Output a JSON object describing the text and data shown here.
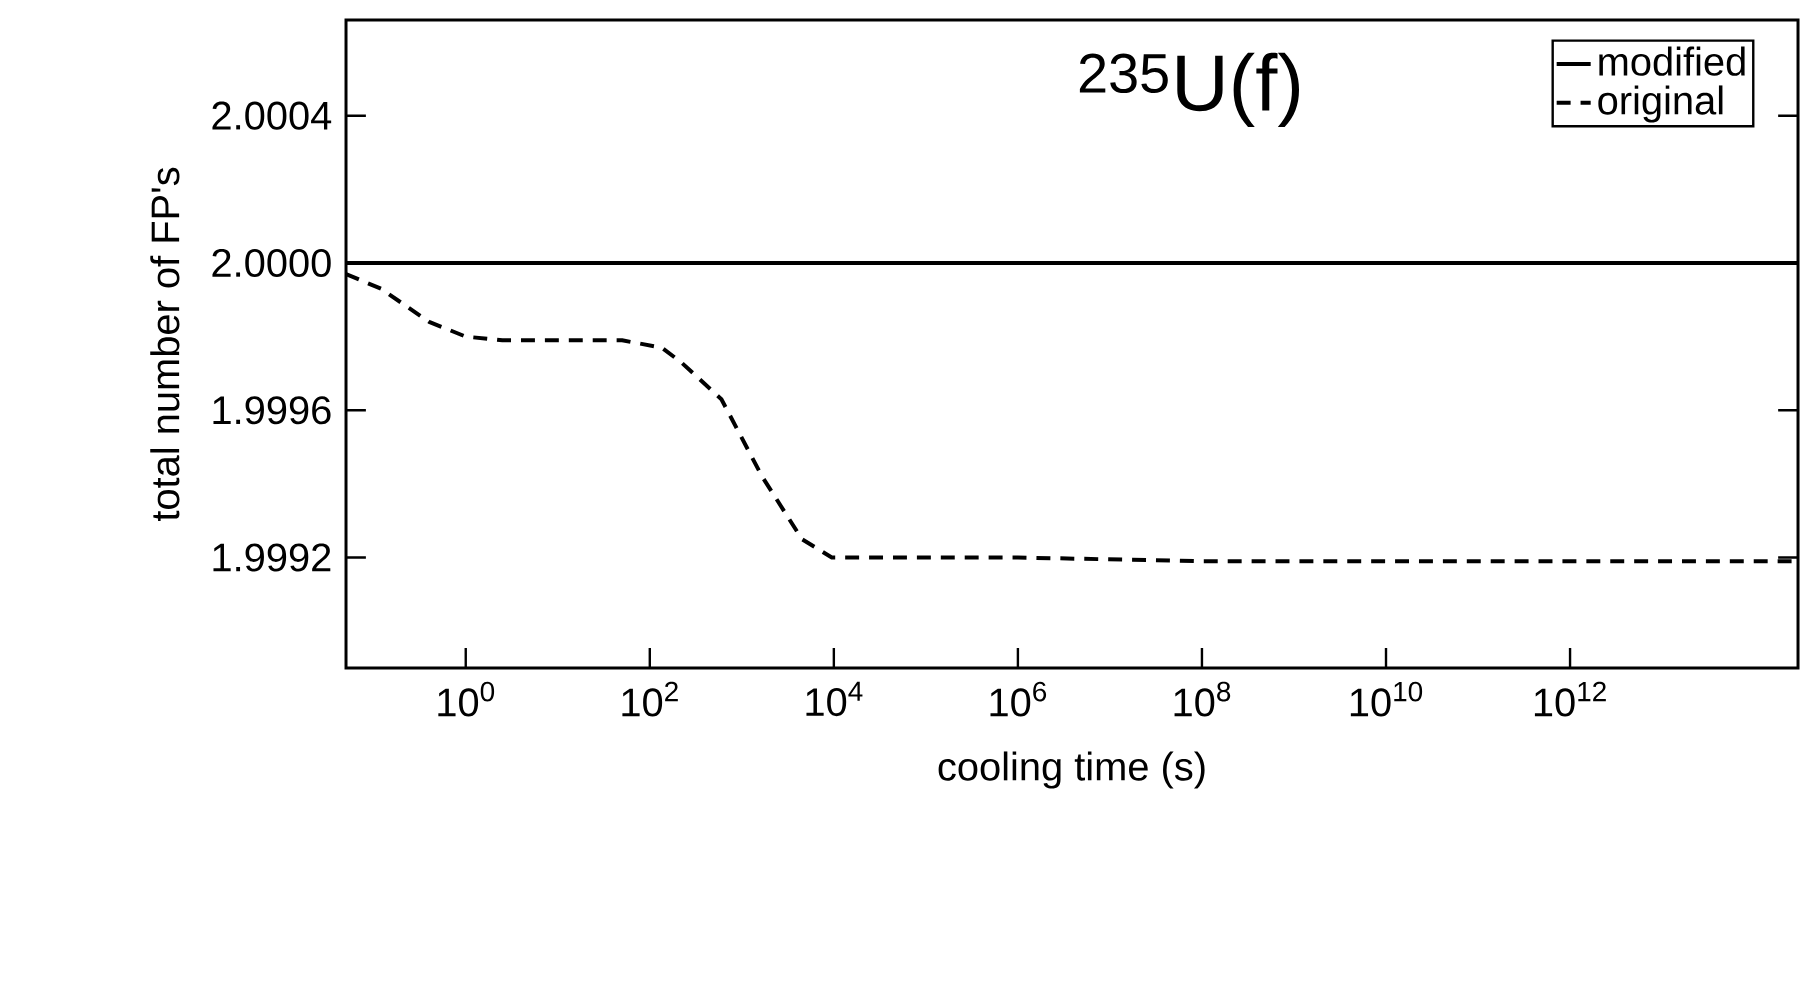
{
  "chart_data": {
    "type": "line",
    "xlabel": "cooling time (s)",
    "ylabel": "total number of FP's",
    "annotations": [
      "$^{235}$U(f)"
    ],
    "log": "x",
    "legend": "top right",
    "grid": false,
    "marker": "none",
    "xlim": [
      0.05,
      300000000000000.0
    ],
    "ylim": [
      1.9989,
      2.00066
    ],
    "xticks": [
      {
        "value": 1,
        "label": "10$^{0}$"
      },
      {
        "value": 100,
        "label": "10$^{2}$"
      },
      {
        "value": 10000,
        "label": "10$^{4}$"
      },
      {
        "value": 1000000,
        "label": "10$^{6}$"
      },
      {
        "value": 100000000,
        "label": "10$^{8}$"
      },
      {
        "value": 10000000000,
        "label": "10$^{10}$"
      },
      {
        "value": 1000000000000,
        "label": "10$^{12}$"
      }
    ],
    "yticks": [
      {
        "value": 1.9992,
        "label": "1.9992"
      },
      {
        "value": 1.9996,
        "label": "1.9996"
      },
      {
        "value": 2.0,
        "label": "2.0000"
      },
      {
        "value": 2.0004,
        "label": "2.0004"
      }
    ],
    "series": [
      {
        "name": "modified",
        "color": "#000000",
        "line_style": "solid",
        "x": [
          0.05,
          300000000000000.0
        ],
        "values": [
          2.0,
          2.0
        ]
      },
      {
        "name": "original",
        "color": "#000000",
        "line_style": "dashed",
        "x": [
          0.05,
          0.12,
          0.4,
          1,
          2.5,
          11,
          50,
          135,
          220,
          600,
          1660,
          4500,
          9500,
          1000000,
          100000000,
          10000000000,
          1000000000000,
          300000000000000.0
        ],
        "values": [
          1.99997,
          1.99993,
          1.99984,
          1.9998,
          1.99979,
          1.99979,
          1.99979,
          1.99977,
          1.99973,
          1.99963,
          1.99942,
          1.99925,
          1.9992,
          1.9992,
          1.99919,
          1.99919,
          1.99919,
          1.99919
        ]
      }
    ]
  }
}
